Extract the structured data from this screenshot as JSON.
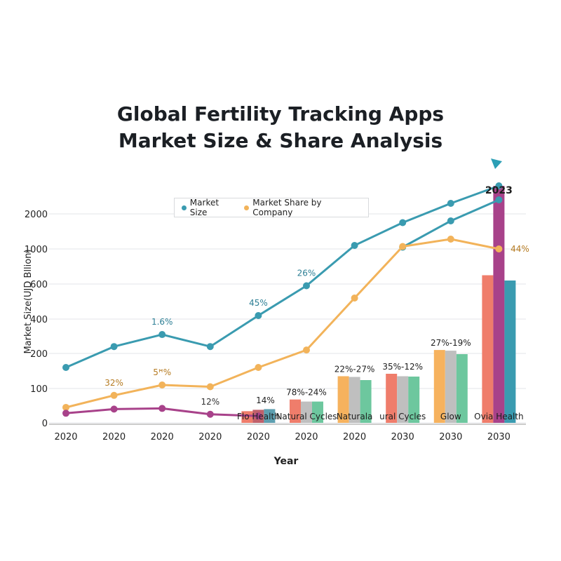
{
  "chart_data": {
    "type": "line",
    "title": "Global Fertility Tracking Apps",
    "subtitle": "Market Size & Share Analysis",
    "xlabel": "Year",
    "ylabel": "Market Size(UJD Bllion)",
    "y_tick_labels": [
      "0",
      "100",
      "200",
      "400",
      "600",
      "1000",
      "2000"
    ],
    "x_tick_labels": [
      "2020",
      "2020",
      "2020",
      "2020",
      "2020",
      "2020",
      "2020",
      "2030",
      "2030",
      "2030"
    ],
    "grid": true,
    "legend_position": "top-center",
    "legend": [
      {
        "label": "Market Size",
        "color": "#3a9bb0"
      },
      {
        "label": "Market Share by Company",
        "color": "#f2b35a"
      }
    ],
    "series": [
      {
        "name": "Market Size",
        "color": "#3a9bb0",
        "values": [
          160,
          240,
          310,
          240,
          420,
          590,
          1100,
          1750,
          2300,
          2800
        ],
        "annotations": [
          {
            "index": 2,
            "text": "1.6%"
          },
          {
            "index": 4,
            "text": "45%"
          },
          {
            "index": 5,
            "text": "26%"
          }
        ]
      },
      {
        "name": "",
        "color": "#3a9bb0",
        "values": [
          null,
          null,
          null,
          null,
          null,
          null,
          null,
          1050,
          1800,
          2400
        ]
      },
      {
        "name": "Market Share by Company",
        "color": "#f2b35a",
        "values": [
          45,
          80,
          110,
          105,
          160,
          220,
          520,
          1070,
          1280,
          1000
        ],
        "annotations": [
          {
            "index": 1,
            "text": "32%"
          },
          {
            "index": 2,
            "text": "5ꟸ%"
          },
          {
            "index": 9,
            "text": "44%"
          }
        ]
      },
      {
        "name": "",
        "color": "#a8428a",
        "values": [
          28,
          40,
          42,
          25,
          20,
          null,
          null,
          null,
          null,
          null
        ],
        "annotations": [
          {
            "index": 3,
            "text": "12%"
          }
        ]
      }
    ],
    "bar_groups": [
      {
        "index": 4,
        "label": "Flo Health",
        "values": [
          34,
          38,
          40
        ],
        "colors": [
          "#ef7d6b",
          "#c0616b",
          "#5d9fb0"
        ],
        "note": "14%"
      },
      {
        "index": 5,
        "label": "Natural Cycles",
        "values": [
          68,
          62,
          62
        ],
        "colors": [
          "#ef7d6b",
          "#bfbfbf",
          "#6dc79e"
        ],
        "note": "78%-24%"
      },
      {
        "index": 6,
        "label": "Naturala",
        "values": [
          135,
          133,
          124
        ],
        "colors": [
          "#f6b25e",
          "#bfbfbf",
          "#6dc79e"
        ],
        "note": "22%-27%"
      },
      {
        "index": 7,
        "label": "ural Cycles",
        "values": [
          142,
          135,
          134
        ],
        "colors": [
          "#ef7d6b",
          "#bfbfbf",
          "#6dc79e"
        ],
        "note": "35%-12%"
      },
      {
        "index": 8,
        "label": "Glow",
        "values": [
          220,
          216,
          198
        ],
        "colors": [
          "#f6b25e",
          "#bfbfbf",
          "#6dc79e"
        ],
        "note": "27%-19%"
      },
      {
        "index": 9,
        "label": "Ovia Health",
        "values": [
          700,
          2800,
          640
        ],
        "colors": [
          "#ef7d6b",
          "#a8428a",
          "#3a9bb0"
        ],
        "note": "2023"
      }
    ]
  }
}
